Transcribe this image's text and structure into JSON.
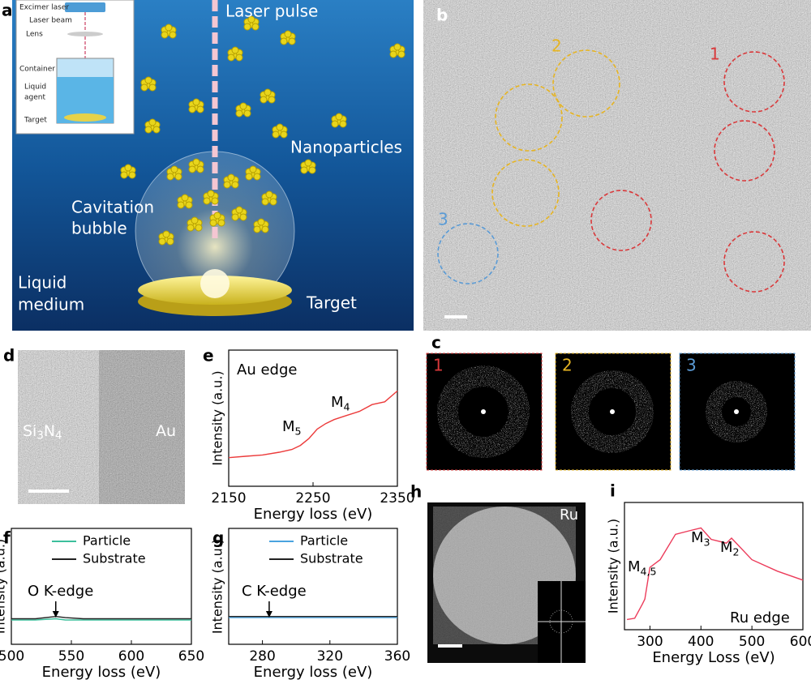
{
  "figure": {
    "panel_a": {
      "label": "a",
      "labels": [
        "Laser pulse",
        "Nanoparticles",
        "Cavitation",
        "bubble",
        "Liquid",
        "medium",
        "Target"
      ],
      "inset_labels": [
        "Excimer laser",
        "Laser beam",
        "Lens",
        "Container",
        "Liquid",
        "agent",
        "Target"
      ]
    },
    "panel_b": {
      "label": "b",
      "regions": [
        {
          "label": "1",
          "color": "#d9383a"
        },
        {
          "label": "2",
          "color": "#e6b422"
        },
        {
          "label": "3",
          "color": "#5b9bd5"
        }
      ]
    },
    "panel_c": {
      "label": "c"
    },
    "panel_d": {
      "label": "d",
      "labels": [
        [
          "Si",
          "3",
          "N",
          "4"
        ],
        [
          "Au"
        ]
      ]
    },
    "panel_h": {
      "label": "h",
      "element": "Ru"
    }
  },
  "chart_data": [
    {
      "type": "line",
      "panel": "e",
      "title": "Au edge",
      "xlabel": "Energy loss (eV)",
      "ylabel": "Intensity (a.u.)",
      "xlim": [
        2150,
        2350
      ],
      "xticks": [
        2150,
        2250,
        2350
      ],
      "ylim": [
        0,
        100
      ],
      "annotations": [
        [
          "M",
          "5"
        ],
        [
          "M",
          "4"
        ]
      ],
      "x": [
        2150,
        2170,
        2190,
        2210,
        2225,
        2235,
        2245,
        2255,
        2265,
        2275,
        2290,
        2305,
        2320,
        2335,
        2350
      ],
      "series": [
        {
          "color": "#ec3b3b",
          "values": [
            21,
            22,
            23,
            25,
            27,
            30,
            35,
            42,
            46,
            49,
            52,
            55,
            60,
            62,
            70
          ]
        }
      ]
    },
    {
      "type": "line",
      "panel": "f",
      "xlabel": "Energy loss (eV)",
      "ylabel": "Intensity (a.u.)",
      "xlim": [
        500,
        650
      ],
      "xticks": [
        500,
        550,
        600,
        650
      ],
      "ylim": [
        0,
        100
      ],
      "annotations": [
        [
          "O K-edge"
        ]
      ],
      "x": [
        500,
        520,
        537,
        545,
        560,
        600,
        650
      ],
      "series": [
        {
          "name": "Particle",
          "color": "#3cbf9c",
          "values": [
            21,
            21,
            22,
            21,
            21,
            21,
            21
          ]
        },
        {
          "name": "Substrate",
          "color": "#222222",
          "values": [
            22,
            22,
            24,
            23,
            22,
            22,
            22
          ]
        }
      ]
    },
    {
      "type": "line",
      "panel": "g",
      "xlabel": "Energy loss (eV)",
      "ylabel": "Intensity (a.u.)",
      "xlim": [
        260,
        360
      ],
      "xticks": [
        280,
        320,
        360
      ],
      "ylim": [
        0,
        100
      ],
      "annotations": [
        [
          "C K-edge"
        ]
      ],
      "x": [
        260,
        280,
        300,
        320,
        340,
        360
      ],
      "series": [
        {
          "name": "Particle",
          "color": "#4aa3df",
          "values": [
            23,
            23,
            23,
            23,
            23,
            23
          ]
        },
        {
          "name": "Substrate",
          "color": "#222222",
          "values": [
            24,
            24,
            24,
            24,
            24,
            24
          ]
        }
      ]
    },
    {
      "type": "line",
      "panel": "i",
      "title": "Ru edge",
      "xlabel": "Energy Loss (eV)",
      "ylabel": "Intensity (a.u.)",
      "xlim": [
        250,
        600
      ],
      "xticks": [
        300,
        400,
        500,
        600
      ],
      "ylim": [
        0,
        100
      ],
      "annotations": [
        [
          "M",
          "4,5"
        ],
        [
          "M",
          "3"
        ],
        [
          "M",
          "2"
        ]
      ],
      "x": [
        255,
        270,
        285,
        290,
        300,
        320,
        350,
        380,
        400,
        420,
        450,
        460,
        500,
        550,
        600
      ],
      "series": [
        {
          "color": "#ec3b5a",
          "values": [
            8,
            9,
            20,
            24,
            49,
            55,
            75,
            78,
            80,
            71,
            68,
            72,
            55,
            46,
            39
          ]
        }
      ]
    }
  ]
}
